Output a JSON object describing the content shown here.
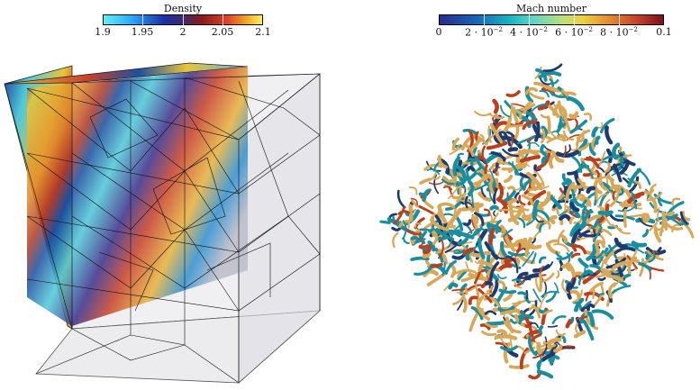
{
  "density_colorbar": {
    "title": "Density",
    "ticks": [
      "1.9",
      "1.95",
      "2",
      "2.05",
      "2.1"
    ]
  },
  "mach_colorbar": {
    "title": "Mach number",
    "ticks": [
      "0",
      "2 · 10",
      "4 · 10",
      "6 · 10",
      "8 · 10",
      "0.1"
    ],
    "exponent": "−2"
  },
  "colors": {
    "cube_yellow": "#e8c43a",
    "cube_blue": "#1c4fa0",
    "cube_red": "#c8402a",
    "cube_teal": "#5fd3d6",
    "vortex_tan": "#d8a85a",
    "vortex_teal": "#1b8e9e",
    "vortex_red": "#b8401e",
    "vortex_navy": "#1f3a6e"
  }
}
